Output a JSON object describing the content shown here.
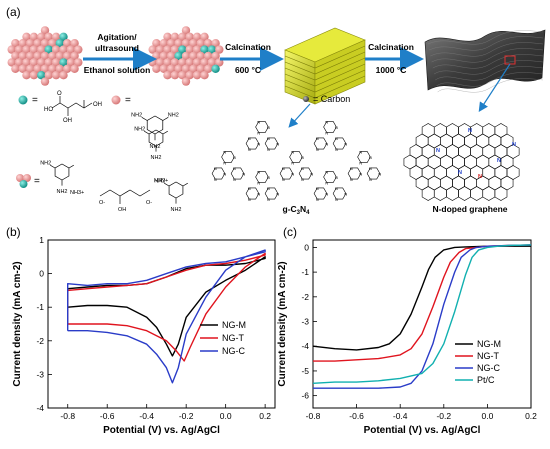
{
  "panels": {
    "a": "(a)",
    "b": "(b)",
    "c": "(c)"
  },
  "scheme": {
    "step1_line1": "Agitation/",
    "step1_line2": "ultrasound",
    "step1_line3": "Ethanol solution",
    "step2_label": "Calcination",
    "step2_temp": "600 °C",
    "step3_label": "Calcination",
    "step3_temp": "1000 °C",
    "carbon_legend": "= Carbon",
    "gc3n4_label": "g-C3N4",
    "ndoped_label": "N-doped graphene",
    "equals": "=",
    "n_atom": "N",
    "colors": {
      "citric_acid": "#2ab3a6",
      "melamine": "#f0a0a0",
      "arrow": "#1f7fc8",
      "gc3n4": "#d4d81c",
      "graphene": "#4a4a4a",
      "n_atom": "#1c3cc8",
      "n_atom_red": "#d42020",
      "highlight": "#e03030"
    },
    "chem": {
      "oh": "OH",
      "ho": "HO",
      "cooh_o": "O",
      "nh2": "NH2",
      "n": "N",
      "nh3plus": "NH3+",
      "h3n_plus": "H3N+",
      "o_minus": "O-"
    }
  },
  "chart_data": [
    {
      "type": "line",
      "panel": "b",
      "xlabel": "Potential (V) vs. Ag/AgCl",
      "ylabel": "Current density (mA cm-2)",
      "xlim": [
        -0.9,
        0.25
      ],
      "ylim": [
        -4,
        1
      ],
      "xticks": [
        "-0.8",
        "-0.6",
        "-0.4",
        "-0.2",
        "0.0",
        "0.2"
      ],
      "yticks": [
        "1",
        "0",
        "-1",
        "-2",
        "-3",
        "-4"
      ],
      "legend": "middle-right",
      "series": [
        {
          "name": "NG-M",
          "color": "#000000",
          "x": [
            -0.8,
            -0.7,
            -0.6,
            -0.5,
            -0.4,
            -0.35,
            -0.3,
            -0.27,
            -0.24,
            -0.2,
            -0.1,
            0.0,
            0.1,
            0.2,
            0.2,
            0.1,
            0.0,
            -0.1,
            -0.2,
            -0.3,
            -0.4,
            -0.5,
            -0.6,
            -0.7,
            -0.8,
            -0.8
          ],
          "y": [
            -1.0,
            -0.95,
            -0.95,
            -1.0,
            -1.3,
            -1.6,
            -2.1,
            -2.45,
            -2.1,
            -1.3,
            -0.55,
            -0.2,
            0.1,
            0.5,
            0.45,
            0.3,
            0.25,
            0.25,
            0.15,
            -0.1,
            -0.3,
            -0.35,
            -0.35,
            -0.4,
            -0.45,
            -1.0
          ]
        },
        {
          "name": "NG-T",
          "color": "#e0141e",
          "x": [
            -0.8,
            -0.7,
            -0.6,
            -0.5,
            -0.4,
            -0.3,
            -0.25,
            -0.21,
            -0.18,
            -0.1,
            0.0,
            0.1,
            0.2,
            0.2,
            0.1,
            0.0,
            -0.1,
            -0.2,
            -0.3,
            -0.4,
            -0.5,
            -0.6,
            -0.7,
            -0.8,
            -0.8
          ],
          "y": [
            -1.5,
            -1.5,
            -1.5,
            -1.55,
            -1.7,
            -2.0,
            -2.3,
            -2.6,
            -2.2,
            -1.2,
            -0.4,
            0.2,
            0.6,
            0.55,
            0.4,
            0.3,
            0.25,
            0.1,
            -0.1,
            -0.3,
            -0.35,
            -0.4,
            -0.45,
            -0.5,
            -1.5
          ]
        },
        {
          "name": "NG-C",
          "color": "#2a3cc8",
          "x": [
            -0.8,
            -0.7,
            -0.6,
            -0.5,
            -0.4,
            -0.35,
            -0.3,
            -0.27,
            -0.24,
            -0.2,
            -0.1,
            0.0,
            0.1,
            0.2,
            0.2,
            0.1,
            0.0,
            -0.1,
            -0.2,
            -0.3,
            -0.4,
            -0.5,
            -0.6,
            -0.7,
            -0.8,
            -0.8
          ],
          "y": [
            -1.7,
            -1.7,
            -1.75,
            -1.85,
            -2.1,
            -2.4,
            -2.8,
            -3.25,
            -2.8,
            -1.8,
            -0.7,
            0.1,
            0.5,
            0.7,
            0.65,
            0.5,
            0.35,
            0.3,
            0.2,
            0.0,
            -0.2,
            -0.3,
            -0.3,
            -0.35,
            -0.3,
            -1.7
          ]
        }
      ]
    },
    {
      "type": "line",
      "panel": "c",
      "xlabel": "Potential (V) vs. Ag/AgCl",
      "ylabel": "Current density (mA cm-2)",
      "xlim": [
        -0.8,
        0.2
      ],
      "ylim": [
        -6.5,
        0.3
      ],
      "xticks": [
        "-0.8",
        "-0.6",
        "-0.4",
        "-0.2",
        "0.0",
        "0.2"
      ],
      "yticks": [
        "0",
        "-1",
        "-2",
        "-3",
        "-4",
        "-5",
        "-6"
      ],
      "legend": "middle-right",
      "series": [
        {
          "name": "NG-M",
          "color": "#000000",
          "x": [
            -0.8,
            -0.7,
            -0.6,
            -0.5,
            -0.45,
            -0.4,
            -0.35,
            -0.3,
            -0.27,
            -0.24,
            -0.2,
            -0.15,
            -0.1,
            0.0,
            0.1,
            0.2
          ],
          "y": [
            -4.0,
            -4.1,
            -4.15,
            -4.05,
            -3.9,
            -3.5,
            -2.7,
            -1.6,
            -0.9,
            -0.4,
            -0.1,
            0.0,
            0.02,
            0.05,
            0.05,
            0.05
          ]
        },
        {
          "name": "NG-T",
          "color": "#e0141e",
          "x": [
            -0.8,
            -0.7,
            -0.6,
            -0.5,
            -0.4,
            -0.35,
            -0.3,
            -0.25,
            -0.2,
            -0.17,
            -0.13,
            -0.1,
            -0.05,
            0.0,
            0.1,
            0.2
          ],
          "y": [
            -4.6,
            -4.6,
            -4.55,
            -4.5,
            -4.35,
            -4.1,
            -3.5,
            -2.4,
            -1.2,
            -0.6,
            -0.2,
            -0.05,
            0.0,
            0.05,
            0.08,
            0.1
          ]
        },
        {
          "name": "NG-C",
          "color": "#2a3cc8",
          "x": [
            -0.8,
            -0.7,
            -0.6,
            -0.5,
            -0.4,
            -0.35,
            -0.3,
            -0.25,
            -0.2,
            -0.15,
            -0.12,
            -0.08,
            -0.05,
            0.0,
            0.1,
            0.2
          ],
          "y": [
            -5.7,
            -5.7,
            -5.7,
            -5.7,
            -5.65,
            -5.5,
            -5.0,
            -3.9,
            -2.3,
            -1.0,
            -0.4,
            -0.1,
            0.0,
            0.05,
            0.08,
            0.1
          ]
        },
        {
          "name": "Pt/C",
          "color": "#11b0b0",
          "x": [
            -0.8,
            -0.7,
            -0.6,
            -0.5,
            -0.4,
            -0.3,
            -0.25,
            -0.2,
            -0.15,
            -0.1,
            -0.07,
            -0.04,
            0.0,
            0.05,
            0.1,
            0.2
          ],
          "y": [
            -5.5,
            -5.45,
            -5.45,
            -5.4,
            -5.3,
            -5.1,
            -4.7,
            -3.9,
            -2.6,
            -1.1,
            -0.4,
            -0.1,
            0.0,
            0.05,
            0.08,
            0.1
          ]
        }
      ]
    }
  ]
}
